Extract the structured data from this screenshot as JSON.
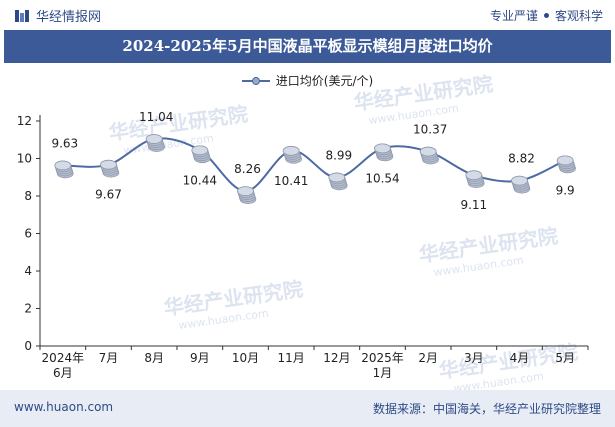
{
  "header": {
    "brand": "华经情报网",
    "tagline_1": "专业严谨",
    "tagline_2": "客观科学"
  },
  "chart_data": {
    "type": "line",
    "title": "2024-2025年5月中国液晶平板显示模组月度进口均价",
    "xlabel": "",
    "ylabel": "",
    "categories": [
      "2024年\n6月",
      "7月",
      "8月",
      "9月",
      "10月",
      "11月",
      "12月",
      "2025年\n1月",
      "2月",
      "3月",
      "4月",
      "5月"
    ],
    "series": [
      {
        "name": "进口均价(美元/个)",
        "values": [
          9.63,
          9.67,
          11.04,
          10.44,
          8.26,
          10.41,
          8.99,
          10.54,
          10.37,
          9.11,
          8.82,
          9.9
        ]
      }
    ],
    "label_positions": [
      "above",
      "below",
      "above",
      "below",
      "above",
      "below",
      "above",
      "below",
      "above",
      "below",
      "above",
      "below"
    ],
    "yticks": [
      0,
      2,
      4,
      6,
      8,
      10,
      12
    ],
    "ylim": [
      0,
      12
    ],
    "grid": false,
    "legend_position": "top-center",
    "line_color": "#4d6aa5"
  },
  "watermark": "华经产业研究院",
  "watermark_url": "www.huaon.com",
  "footer": {
    "site": "www.huaon.com",
    "source": "数据来源：中国海关，华经产业研究院整理"
  }
}
